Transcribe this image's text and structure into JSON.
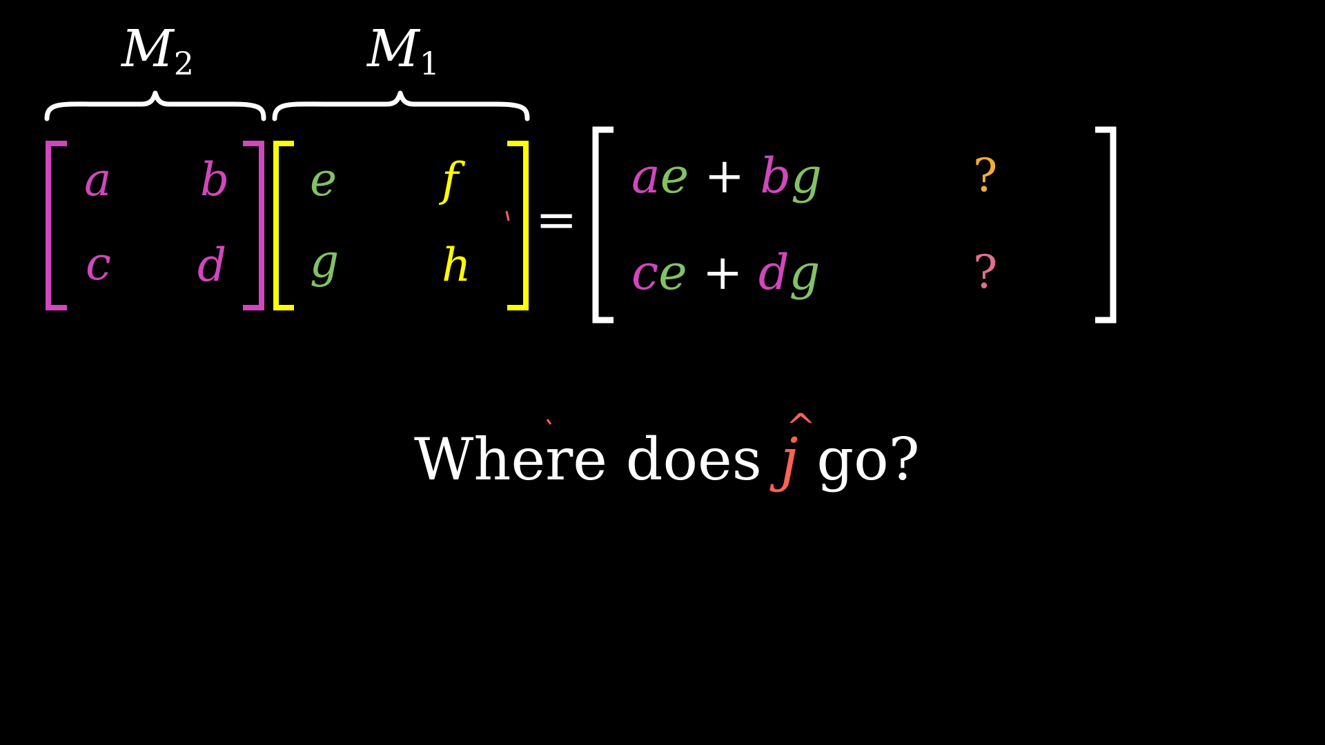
{
  "labels": {
    "left": "M",
    "left_sub": "2",
    "right": "M",
    "right_sub": "1"
  },
  "matrix_m2": {
    "a": "a",
    "b": "b",
    "c": "c",
    "d": "d",
    "color": "#d147bd"
  },
  "matrix_m1": {
    "e": "e",
    "f": "f",
    "g": "g",
    "h": "h",
    "col1_color": "#83c167",
    "col2_color": "#ffff00",
    "bracket_color": "#ffff00"
  },
  "equals": "=",
  "result": {
    "row1": {
      "t1": "a",
      "t2": "e",
      "plus": "+",
      "t3": "b",
      "t4": "g"
    },
    "row2": {
      "t1": "c",
      "t2": "e",
      "plus": "+",
      "t3": "d",
      "t4": "g"
    },
    "q1": "?",
    "q2": "?",
    "q1_color": "#f0ac3c",
    "q2_color": "#e0708e"
  },
  "caption": {
    "before": "Where does ",
    "jhat": "j",
    "hat": "^",
    "after": " go?",
    "jhat_color": "#fc6255"
  },
  "colors": {
    "m2": "#d147bd",
    "m1_col1": "#83c167",
    "m1_col2": "#ffff00",
    "white": "#ffffff",
    "jhat": "#fc6255"
  }
}
